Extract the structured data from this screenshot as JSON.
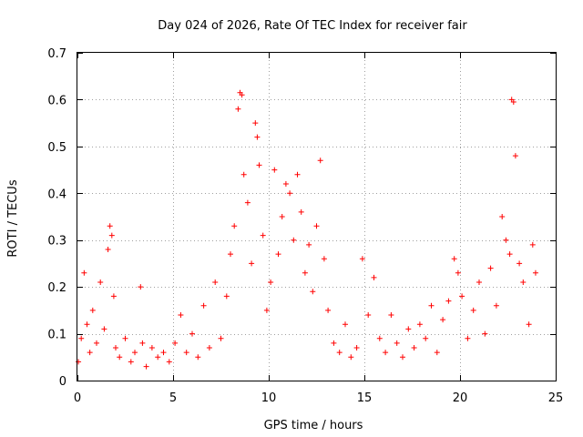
{
  "chart_data": {
    "type": "scatter",
    "title": "Day 024 of 2026, Rate Of TEC Index for receiver fair",
    "xlabel": "GPS time / hours",
    "ylabel": "ROTI / TECUs",
    "xlim": [
      0,
      25
    ],
    "ylim": [
      0,
      0.7
    ],
    "xticks": [
      0,
      5,
      10,
      15,
      20,
      25
    ],
    "xtick_labels": [
      "0",
      "5",
      "10",
      "15",
      "20",
      "25"
    ],
    "yticks": [
      0,
      0.1,
      0.2,
      0.3,
      0.4,
      0.5,
      0.6,
      0.7
    ],
    "ytick_labels": [
      "0",
      "0.1",
      "0.2",
      "0.3",
      "0.4",
      "0.5",
      "0.6",
      "0.7"
    ],
    "grid": true,
    "marker": "plus",
    "color": "#ff0000",
    "series": [
      {
        "name": "ROTI",
        "x": [
          0.05,
          0.2,
          0.35,
          0.5,
          0.65,
          0.8,
          1.0,
          1.2,
          1.4,
          1.6,
          1.7,
          1.8,
          1.9,
          2.0,
          2.2,
          2.5,
          2.8,
          3.0,
          3.3,
          3.4,
          3.6,
          3.9,
          4.2,
          4.5,
          4.8,
          5.1,
          5.4,
          5.7,
          6.0,
          6.3,
          6.6,
          6.9,
          7.2,
          7.5,
          7.8,
          8.0,
          8.2,
          8.4,
          8.5,
          8.6,
          8.7,
          8.9,
          9.1,
          9.3,
          9.4,
          9.5,
          9.7,
          9.9,
          10.1,
          10.3,
          10.5,
          10.7,
          10.9,
          11.1,
          11.3,
          11.5,
          11.7,
          11.9,
          12.1,
          12.3,
          12.5,
          12.7,
          12.9,
          13.1,
          13.4,
          13.7,
          14.0,
          14.3,
          14.6,
          14.9,
          15.2,
          15.5,
          15.8,
          16.1,
          16.4,
          16.7,
          17.0,
          17.3,
          17.6,
          17.9,
          18.2,
          18.5,
          18.8,
          19.1,
          19.4,
          19.7,
          19.9,
          20.1,
          20.4,
          20.7,
          21.0,
          21.3,
          21.6,
          21.9,
          22.2,
          22.4,
          22.6,
          22.7,
          22.8,
          22.9,
          23.1,
          23.3,
          23.6,
          23.8,
          23.95
        ],
        "y": [
          0.04,
          0.09,
          0.23,
          0.12,
          0.06,
          0.15,
          0.08,
          0.21,
          0.11,
          0.28,
          0.33,
          0.31,
          0.18,
          0.07,
          0.05,
          0.09,
          0.04,
          0.06,
          0.2,
          0.08,
          0.03,
          0.07,
          0.05,
          0.06,
          0.04,
          0.08,
          0.14,
          0.06,
          0.1,
          0.05,
          0.16,
          0.07,
          0.21,
          0.09,
          0.18,
          0.27,
          0.33,
          0.58,
          0.615,
          0.61,
          0.44,
          0.38,
          0.25,
          0.55,
          0.52,
          0.46,
          0.31,
          0.15,
          0.21,
          0.45,
          0.27,
          0.35,
          0.42,
          0.4,
          0.3,
          0.44,
          0.36,
          0.23,
          0.29,
          0.19,
          0.33,
          0.47,
          0.26,
          0.15,
          0.08,
          0.06,
          0.12,
          0.05,
          0.07,
          0.26,
          0.14,
          0.22,
          0.09,
          0.06,
          0.14,
          0.08,
          0.05,
          0.11,
          0.07,
          0.12,
          0.09,
          0.16,
          0.06,
          0.13,
          0.17,
          0.26,
          0.23,
          0.18,
          0.09,
          0.15,
          0.21,
          0.1,
          0.24,
          0.16,
          0.35,
          0.3,
          0.27,
          0.6,
          0.595,
          0.48,
          0.25,
          0.21,
          0.12,
          0.29,
          0.23
        ]
      }
    ]
  }
}
